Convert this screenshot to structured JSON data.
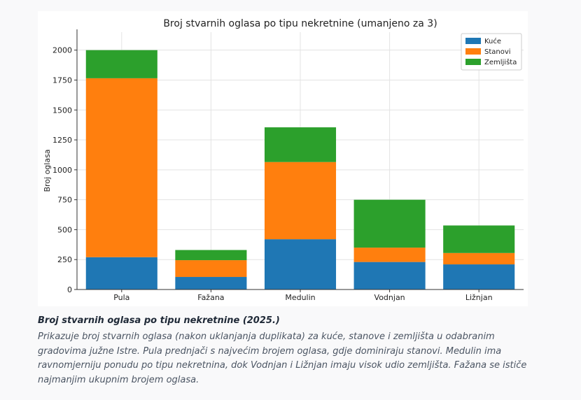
{
  "chart_data": {
    "type": "bar",
    "stacked": true,
    "title": "Broj stvarnih oglasa po tipu nekretnine (umanjeno za 3)",
    "xlabel": "",
    "ylabel": "Broj oglasa",
    "ylim": [
      0,
      2150
    ],
    "yticks": [
      0,
      250,
      500,
      750,
      1000,
      1250,
      1500,
      1750,
      2000
    ],
    "grid": true,
    "legend_position": "top-right",
    "categories": [
      "Pula",
      "Fažana",
      "Medulin",
      "Vodnjan",
      "Ližnjan"
    ],
    "series": [
      {
        "name": "Kuće",
        "color": "#1f77b4",
        "values": [
          270,
          105,
          420,
          230,
          210
        ]
      },
      {
        "name": "Stanovi",
        "color": "#ff7f0e",
        "values": [
          1495,
          140,
          645,
          120,
          95
        ]
      },
      {
        "name": "Zemljišta",
        "color": "#2ca02c",
        "values": [
          235,
          85,
          290,
          400,
          230
        ]
      }
    ]
  },
  "caption": {
    "title": "Broj stvarnih oglasa po tipu nekretnine (2025.)",
    "text": "Prikazuje broj stvarnih oglasa (nakon uklanjanja duplikata) za kuće, stanove i zemljišta u odabranim gradovima južne Istre. Pula prednjači s najvećim brojem oglasa, gdje dominiraju stanovi. Medulin ima ravnomjerniju ponudu po tipu nekretnina, dok Vodnjan i Ližnjan imaju visok udio zemljišta. Fažana se ističe najmanjim ukupnim brojem oglasa."
  }
}
